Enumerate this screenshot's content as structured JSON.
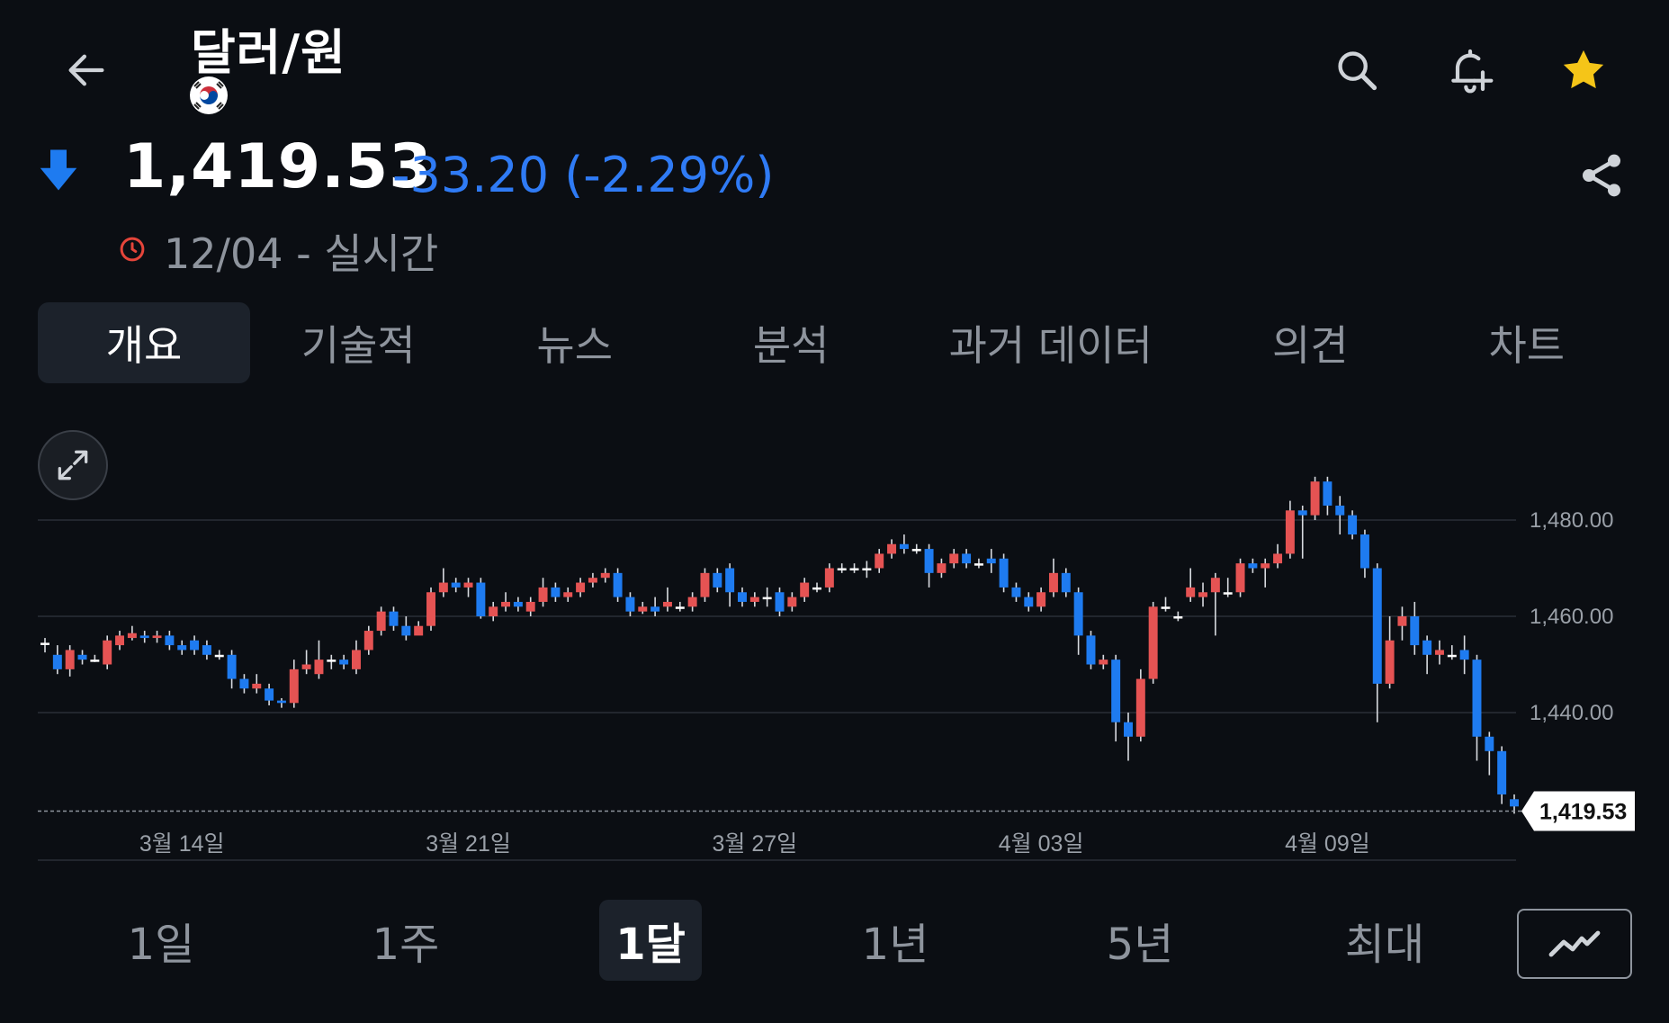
{
  "header": {
    "title": "달러/원",
    "price": "1,419.53",
    "change": "-33.20 (-2.29%)",
    "time": "12/04 - 실시간"
  },
  "tabs": [
    {
      "label": "개요",
      "active": true
    },
    {
      "label": "기술적",
      "active": false
    },
    {
      "label": "뉴스",
      "active": false
    },
    {
      "label": "분석",
      "active": false
    },
    {
      "label": "과거 데이터",
      "active": false
    },
    {
      "label": "의견",
      "active": false
    },
    {
      "label": "차트",
      "active": false
    }
  ],
  "colors": {
    "up": "#e55353",
    "down": "#1e7bf0",
    "star": "#f5c518",
    "clock": "#e5453a"
  },
  "chart_data": {
    "type": "candlestick",
    "ylim": [
      1420,
      1490
    ],
    "yticks": [
      "1,480.00",
      "1,460.00",
      "1,440.00"
    ],
    "ytick_values": [
      1480,
      1460,
      1440
    ],
    "xticks": [
      {
        "label": "3월 14일",
        "index": 11
      },
      {
        "label": "3월 21일",
        "index": 34
      },
      {
        "label": "3월 27일",
        "index": 57
      },
      {
        "label": "4월 03일",
        "index": 80
      },
      {
        "label": "4월 09일",
        "index": 103
      }
    ],
    "last_value": 1419.53,
    "last_label": "1,419.53",
    "candles": [
      [
        1454.5,
        1454.5,
        1455.5,
        1452.5
      ],
      [
        1452.0,
        1449.0,
        1454.0,
        1448.0
      ],
      [
        1449.0,
        1453.0,
        1454.0,
        1447.5
      ],
      [
        1452.0,
        1451.0,
        1453.0,
        1450.0
      ],
      [
        1451.0,
        1451.0,
        1452.0,
        1450.5
      ],
      [
        1450.0,
        1455.0,
        1456.0,
        1449.0
      ],
      [
        1454.0,
        1456.0,
        1457.0,
        1453.0
      ],
      [
        1455.5,
        1456.5,
        1458.0,
        1455.0
      ],
      [
        1456.0,
        1455.5,
        1457.0,
        1454.5
      ],
      [
        1455.5,
        1456.0,
        1457.0,
        1454.5
      ],
      [
        1456.0,
        1454.0,
        1457.0,
        1453.0
      ],
      [
        1454.0,
        1453.0,
        1455.0,
        1452.0
      ],
      [
        1455.0,
        1453.0,
        1456.0,
        1452.0
      ],
      [
        1454.0,
        1452.0,
        1455.0,
        1451.0
      ],
      [
        1452.0,
        1452.0,
        1453.0,
        1451.0
      ],
      [
        1452.0,
        1447.0,
        1453.0,
        1445.0
      ],
      [
        1447.0,
        1445.0,
        1448.0,
        1444.0
      ],
      [
        1445.0,
        1446.0,
        1448.0,
        1444.0
      ],
      [
        1445.0,
        1442.5,
        1446.0,
        1441.5
      ],
      [
        1442.5,
        1442.0,
        1443.0,
        1441.0
      ],
      [
        1442.0,
        1449.0,
        1451.0,
        1441.0
      ],
      [
        1449.0,
        1450.0,
        1453.0,
        1448.0
      ],
      [
        1448.0,
        1451.0,
        1455.0,
        1447.0
      ],
      [
        1451.0,
        1451.0,
        1452.0,
        1449.0
      ],
      [
        1451.0,
        1450.0,
        1452.0,
        1449.0
      ],
      [
        1449.0,
        1453.0,
        1455.0,
        1448.0
      ],
      [
        1453.0,
        1457.0,
        1458.0,
        1452.0
      ],
      [
        1457.0,
        1461.0,
        1462.0,
        1456.0
      ],
      [
        1461.0,
        1458.0,
        1462.0,
        1457.0
      ],
      [
        1458.0,
        1456.0,
        1460.0,
        1455.0
      ],
      [
        1456.0,
        1458.0,
        1459.0,
        1457.0
      ],
      [
        1458.0,
        1465.0,
        1466.0,
        1457.0
      ],
      [
        1465.0,
        1467.0,
        1470.0,
        1464.0
      ],
      [
        1467.0,
        1466.0,
        1468.0,
        1465.0
      ],
      [
        1466.0,
        1467.0,
        1468.0,
        1464.0
      ],
      [
        1467.0,
        1460.0,
        1468.0,
        1459.5
      ],
      [
        1460.0,
        1462.0,
        1463.0,
        1459.0
      ],
      [
        1462.0,
        1463.0,
        1465.0,
        1461.0
      ],
      [
        1463.0,
        1462.0,
        1464.0,
        1461.0
      ],
      [
        1461.0,
        1463.0,
        1464.0,
        1460.0
      ],
      [
        1463.0,
        1466.0,
        1468.0,
        1462.0
      ],
      [
        1466.0,
        1464.0,
        1467.0,
        1463.0
      ],
      [
        1464.0,
        1465.0,
        1466.0,
        1463.0
      ],
      [
        1465.0,
        1467.0,
        1468.0,
        1464.0
      ],
      [
        1467.0,
        1468.0,
        1469.0,
        1466.0
      ],
      [
        1468.0,
        1469.0,
        1470.0,
        1467.0
      ],
      [
        1469.0,
        1464.0,
        1470.0,
        1463.0
      ],
      [
        1464.0,
        1461.0,
        1465.0,
        1460.0
      ],
      [
        1461.0,
        1462.0,
        1463.0,
        1460.5
      ],
      [
        1462.0,
        1461.0,
        1464.0,
        1460.0
      ],
      [
        1462.0,
        1463.0,
        1466.0,
        1461.0
      ],
      [
        1462.0,
        1462.0,
        1463.0,
        1461.0
      ],
      [
        1462.0,
        1464.0,
        1465.0,
        1461.0
      ],
      [
        1464.0,
        1469.0,
        1470.0,
        1463.0
      ],
      [
        1469.0,
        1466.0,
        1470.0,
        1465.0
      ],
      [
        1470.0,
        1465.0,
        1471.0,
        1462.0
      ],
      [
        1465.0,
        1463.0,
        1466.0,
        1462.0
      ],
      [
        1463.0,
        1464.0,
        1465.0,
        1462.0
      ],
      [
        1464.0,
        1464.0,
        1466.0,
        1462.0
      ],
      [
        1465.0,
        1461.0,
        1466.0,
        1460.0
      ],
      [
        1462.0,
        1464.0,
        1465.0,
        1461.0
      ],
      [
        1464.0,
        1467.0,
        1468.0,
        1463.0
      ],
      [
        1466.0,
        1466.0,
        1467.0,
        1465.0
      ],
      [
        1466.0,
        1470.0,
        1471.0,
        1465.0
      ],
      [
        1470.0,
        1470.0,
        1471.0,
        1469.0
      ],
      [
        1470.0,
        1470.0,
        1471.0,
        1469.0
      ],
      [
        1470.0,
        1470.0,
        1471.5,
        1468.0
      ],
      [
        1470.0,
        1473.0,
        1474.0,
        1469.0
      ],
      [
        1473.0,
        1475.0,
        1476.0,
        1472.0
      ],
      [
        1475.0,
        1474.0,
        1477.0,
        1473.0
      ],
      [
        1474.0,
        1474.0,
        1475.0,
        1473.0
      ],
      [
        1474.0,
        1469.0,
        1475.0,
        1466.0
      ],
      [
        1469.0,
        1471.0,
        1472.0,
        1468.0
      ],
      [
        1471.0,
        1473.0,
        1474.0,
        1470.0
      ],
      [
        1473.0,
        1471.0,
        1474.0,
        1470.0
      ],
      [
        1471.0,
        1471.0,
        1472.0,
        1470.0
      ],
      [
        1472.0,
        1471.0,
        1474.0,
        1469.0
      ],
      [
        1472.0,
        1466.0,
        1473.0,
        1465.0
      ],
      [
        1466.0,
        1464.0,
        1467.0,
        1463.0
      ],
      [
        1464.0,
        1462.0,
        1465.0,
        1461.0
      ],
      [
        1462.0,
        1465.0,
        1466.0,
        1461.0
      ],
      [
        1465.0,
        1469.0,
        1472.0,
        1464.0
      ],
      [
        1469.0,
        1465.0,
        1470.0,
        1464.0
      ],
      [
        1465.0,
        1456.0,
        1466.0,
        1452.0
      ],
      [
        1456.0,
        1450.0,
        1457.0,
        1449.0
      ],
      [
        1450.0,
        1451.0,
        1452.0,
        1449.0
      ],
      [
        1451.0,
        1438.0,
        1452.0,
        1434.0
      ],
      [
        1438.0,
        1435.0,
        1440.0,
        1430.0
      ],
      [
        1435.0,
        1447.0,
        1449.0,
        1434.0
      ],
      [
        1447.0,
        1462.0,
        1463.0,
        1446.0
      ],
      [
        1462.0,
        1462.0,
        1464.0,
        1461.0
      ],
      [
        1460.0,
        1460.0,
        1461.0,
        1459.0
      ],
      [
        1464.0,
        1466.0,
        1470.0,
        1463.0
      ],
      [
        1464.0,
        1465.0,
        1467.0,
        1462.0
      ],
      [
        1465.0,
        1468.0,
        1469.0,
        1456.0
      ],
      [
        1465.0,
        1465.0,
        1468.0,
        1464.0
      ],
      [
        1465.0,
        1471.0,
        1472.0,
        1464.0
      ],
      [
        1471.0,
        1470.0,
        1472.0,
        1469.0
      ],
      [
        1470.0,
        1471.0,
        1472.0,
        1466.0
      ],
      [
        1471.0,
        1473.0,
        1475.0,
        1470.0
      ],
      [
        1473.0,
        1482.0,
        1484.0,
        1472.0
      ],
      [
        1482.0,
        1481.0,
        1483.0,
        1472.0
      ],
      [
        1481.0,
        1488.0,
        1489.0,
        1480.0
      ],
      [
        1488.0,
        1483.0,
        1489.0,
        1481.0
      ],
      [
        1483.0,
        1481.0,
        1485.0,
        1477.0
      ],
      [
        1481.0,
        1477.0,
        1482.0,
        1476.0
      ],
      [
        1477.0,
        1470.0,
        1478.0,
        1468.0
      ],
      [
        1470.0,
        1446.0,
        1471.0,
        1438.0
      ],
      [
        1446.0,
        1455.0,
        1460.0,
        1445.0
      ],
      [
        1458.0,
        1460.0,
        1462.0,
        1455.0
      ],
      [
        1460.0,
        1454.0,
        1463.0,
        1452.0
      ],
      [
        1455.0,
        1452.0,
        1456.0,
        1448.0
      ],
      [
        1452.0,
        1453.0,
        1455.0,
        1450.0
      ],
      [
        1452.0,
        1452.0,
        1454.0,
        1451.0
      ],
      [
        1453.0,
        1451.0,
        1456.0,
        1448.0
      ],
      [
        1451.0,
        1435.0,
        1452.0,
        1430.0
      ],
      [
        1435.0,
        1432.0,
        1436.0,
        1427.0
      ],
      [
        1432.0,
        1423.0,
        1433.0,
        1421.0
      ],
      [
        1422.0,
        1420.5,
        1423.0,
        1419.0
      ]
    ]
  },
  "ranges": [
    {
      "label": "1일",
      "active": false
    },
    {
      "label": "1주",
      "active": false
    },
    {
      "label": "1달",
      "active": true
    },
    {
      "label": "1년",
      "active": false
    },
    {
      "label": "5년",
      "active": false
    },
    {
      "label": "최대",
      "active": false
    }
  ]
}
